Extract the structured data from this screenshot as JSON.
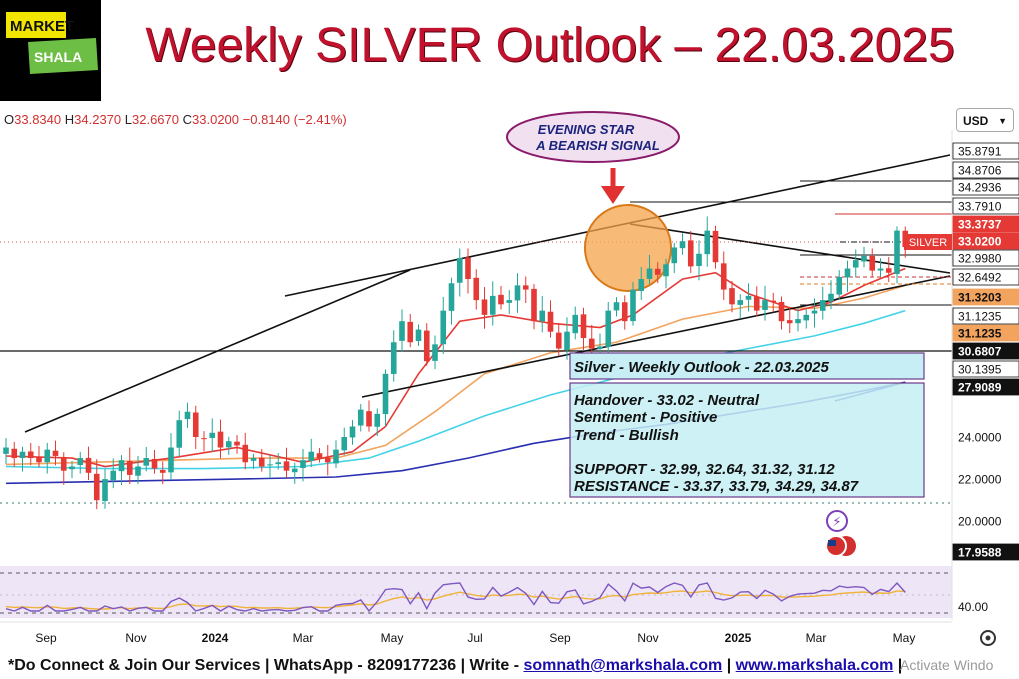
{
  "header": {
    "logo_line1": "MARKET",
    "logo_line2": "SHALA",
    "title": "Weekly SILVER Outlook – 22.03.2025"
  },
  "ohlc": {
    "o_label": "O",
    "o_value": "33.8340",
    "h_label": "H",
    "h_value": "34.2370",
    "l_label": "L",
    "l_value": "32.6670",
    "c_label": "C",
    "c_value": "33.0200",
    "change": "−0.8140 (−2.41%)"
  },
  "currency_selector": "USD",
  "annotation_bubble": {
    "line1": "EVENING STAR",
    "line2": "A BEARISH SIGNAL"
  },
  "outlook_box": {
    "title": "Silver - Weekly Outlook - 22.03.2025"
  },
  "details_box": {
    "handover": "Handover - 33.02 - Neutral",
    "sentiment": "Sentiment - Positive",
    "trend": "Trend - Bullish",
    "support": "SUPPORT - 32.99, 32.64, 31.32, 31.12",
    "resistance": "RESISTANCE - 33.37, 33.79, 34.29, 34.87"
  },
  "footer": {
    "prefix": "*Do Connect & Join Our Services | WhatsApp - 8209177236 | Write - ",
    "email": "somnath@markshala.com",
    "separator": " | ",
    "website": "www.markshala.com",
    "suffix": " |"
  },
  "watermark": "Activate Windo",
  "chart_data": {
    "type": "candlestick",
    "symbol_tag": "SILVER",
    "x_labels": [
      "Sep",
      "Nov",
      "2024",
      "Mar",
      "May",
      "Jul",
      "Sep",
      "Nov",
      "2025",
      "Mar",
      "May"
    ],
    "price_labels": [
      {
        "value": 35.8791,
        "text": "35.8791",
        "style": "plain"
      },
      {
        "value": 34.8706,
        "text": "34.8706",
        "style": "plain"
      },
      {
        "value": 34.2936,
        "text": "34.2936",
        "style": "plain"
      },
      {
        "value": 33.791,
        "text": "33.7910",
        "style": "plain"
      },
      {
        "value": 33.3737,
        "text": "33.3737",
        "style": "red"
      },
      {
        "value": 33.02,
        "text": "33.0200",
        "style": "red"
      },
      {
        "value": 32.998,
        "text": "32.9980",
        "style": "plain"
      },
      {
        "value": 32.6492,
        "text": "32.6492",
        "style": "plain"
      },
      {
        "value": 31.3203,
        "text": "31.3203",
        "style": "orange"
      },
      {
        "value": 31.1235,
        "text": "31.1235",
        "style": "plain"
      },
      {
        "value": 31.1235,
        "text": "31.1235",
        "style": "orange"
      },
      {
        "value": 30.6807,
        "text": "30.6807",
        "style": "black"
      },
      {
        "value": 30.1395,
        "text": "30.1395",
        "style": "plain"
      },
      {
        "value": 27.9089,
        "text": "27.9089",
        "style": "black"
      },
      {
        "value": 24.0,
        "text": "24.0000",
        "style": "axis"
      },
      {
        "value": 22.0,
        "text": "22.0000",
        "style": "axis"
      },
      {
        "value": 20.0,
        "text": "20.0000",
        "style": "axis"
      },
      {
        "value": 17.9588,
        "text": "17.9588",
        "style": "black"
      }
    ],
    "rsi_label": "40.00",
    "closes": [
      23.5,
      23.0,
      23.3,
      23.0,
      22.8,
      23.4,
      23.1,
      22.4,
      22.6,
      23.0,
      22.3,
      21.0,
      22.0,
      22.4,
      22.9,
      22.2,
      22.6,
      23.0,
      22.5,
      22.3,
      23.5,
      24.8,
      25.2,
      24.0,
      23.9,
      24.2,
      23.5,
      23.8,
      23.6,
      22.8,
      23.0,
      22.6,
      22.7,
      22.8,
      22.4,
      22.5,
      22.9,
      23.3,
      23.0,
      22.8,
      23.4,
      24.0,
      24.5,
      25.3,
      24.5,
      25.1,
      27.0,
      28.5,
      29.5,
      28.5,
      29.1,
      27.6,
      28.4,
      30.0,
      31.3,
      32.5,
      31.5,
      30.5,
      29.8,
      30.7,
      30.3,
      30.5,
      31.2,
      31.0,
      29.5,
      30.0,
      29.0,
      28.2,
      29.0,
      29.8,
      28.7,
      28.2,
      28.3,
      30.0,
      30.4,
      29.5,
      31.0,
      31.5,
      32.0,
      31.7,
      32.2,
      33.0,
      33.3,
      32.1,
      32.7,
      33.8,
      32.3,
      31.0,
      30.3,
      30.5,
      30.7,
      30.0,
      30.5,
      30.4,
      29.5,
      29.4,
      29.6,
      29.8,
      30.0,
      30.5,
      30.8,
      31.6,
      32.0,
      32.4,
      32.6,
      31.9,
      32.0,
      31.8,
      33.8,
      33.02
    ],
    "ma_fast": [
      [
        0,
        23.1
      ],
      [
        8,
        23.0
      ],
      [
        12,
        22.6
      ],
      [
        20,
        23.0
      ],
      [
        28,
        23.5
      ],
      [
        36,
        22.8
      ],
      [
        42,
        23.3
      ],
      [
        46,
        24.5
      ],
      [
        50,
        27.0
      ],
      [
        55,
        29.5
      ],
      [
        60,
        29.8
      ],
      [
        66,
        29.4
      ],
      [
        72,
        29.2
      ],
      [
        76,
        29.8
      ],
      [
        82,
        31.5
      ],
      [
        86,
        31.8
      ],
      [
        90,
        30.8
      ],
      [
        96,
        30.0
      ],
      [
        100,
        30.4
      ],
      [
        104,
        31.2
      ],
      [
        109,
        32.0
      ]
    ],
    "ma_mid": [
      [
        0,
        22.7
      ],
      [
        10,
        22.8
      ],
      [
        20,
        22.9
      ],
      [
        30,
        23.0
      ],
      [
        40,
        23.0
      ],
      [
        46,
        23.6
      ],
      [
        52,
        25.2
      ],
      [
        58,
        27.0
      ],
      [
        66,
        28.0
      ],
      [
        74,
        28.5
      ],
      [
        82,
        29.6
      ],
      [
        90,
        30.2
      ],
      [
        98,
        30.1
      ],
      [
        104,
        30.6
      ],
      [
        109,
        31.2
      ]
    ],
    "ma_slow": [
      [
        0,
        22.6
      ],
      [
        12,
        22.5
      ],
      [
        24,
        22.5
      ],
      [
        36,
        22.6
      ],
      [
        44,
        23.0
      ],
      [
        50,
        23.8
      ],
      [
        58,
        25.0
      ],
      [
        66,
        26.0
      ],
      [
        74,
        26.8
      ],
      [
        82,
        27.6
      ],
      [
        90,
        28.2
      ],
      [
        98,
        28.8
      ],
      [
        104,
        29.4
      ],
      [
        109,
        30.0
      ]
    ],
    "ma_long": [
      [
        0,
        21.8
      ],
      [
        14,
        21.9
      ],
      [
        28,
        22.0
      ],
      [
        40,
        22.1
      ],
      [
        48,
        22.4
      ],
      [
        56,
        23.0
      ],
      [
        64,
        23.7
      ],
      [
        72,
        24.2
      ],
      [
        80,
        24.6
      ],
      [
        88,
        25.1
      ],
      [
        96,
        25.6
      ],
      [
        104,
        26.2
      ],
      [
        109,
        26.6
      ]
    ]
  }
}
